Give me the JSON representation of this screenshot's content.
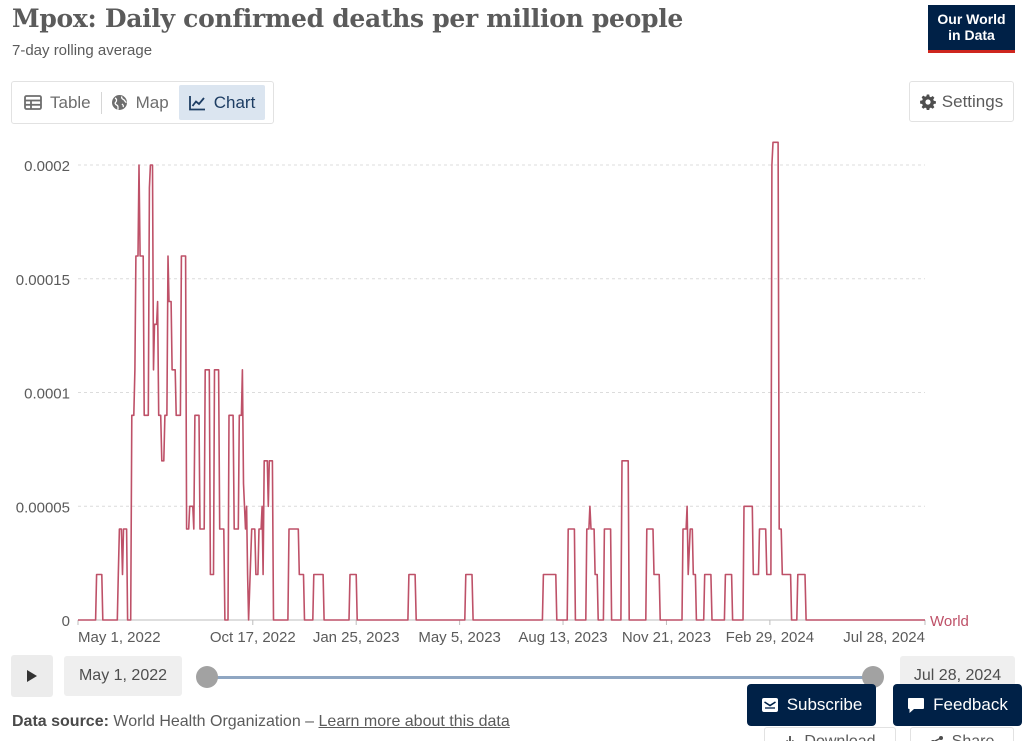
{
  "header": {
    "title": "Mpox: Daily confirmed deaths per million people",
    "subtitle": "7-day rolling average",
    "logo_line1": "Our World",
    "logo_line2": "in Data"
  },
  "tabs": [
    {
      "label": "Table",
      "icon": "table-icon",
      "active": false
    },
    {
      "label": "Map",
      "icon": "globe-icon",
      "active": false
    },
    {
      "label": "Chart",
      "icon": "line-chart-icon",
      "active": true
    }
  ],
  "settings_label": "Settings",
  "timeline": {
    "start_date": "May 1, 2022",
    "end_date": "Jul 28, 2024"
  },
  "footer": {
    "source_prefix": "Data source:",
    "source_name": "World Health Organization – ",
    "learn_more": "Learn more about this data",
    "subscribe_label": "Subscribe",
    "feedback_label": "Feedback",
    "download_label": "Download",
    "share_label": "Share"
  },
  "colors": {
    "series": "#be5168",
    "brand": "#002147",
    "brand_accent": "#ce261e",
    "active_tab": "#dbe5f0"
  },
  "chart_data": {
    "type": "line",
    "title": "Mpox: Daily confirmed deaths per million people",
    "subtitle": "7-day rolling average",
    "x_start": "May 1, 2022",
    "x_end": "Jul 28, 2024",
    "x_tick_labels": [
      "May 1, 2022",
      "Oct 17, 2022",
      "Jan 25, 2023",
      "May 5, 2023",
      "Aug 13, 2023",
      "Nov 21, 2023",
      "Feb 29, 2024",
      "Jul 28, 2024"
    ],
    "y_ticks": [
      0,
      5e-05,
      0.0001,
      0.00015,
      0.0002
    ],
    "y_tick_labels": [
      "0",
      "0.00005",
      "0.0001",
      "0.00015",
      "0.0002"
    ],
    "ylim": [
      0,
      0.00021
    ],
    "grid": "horizontal-dashed",
    "series": [
      {
        "name": "World",
        "color": "#be5168",
        "points": [
          [
            "2022-05-01",
            0
          ],
          [
            "2022-05-18",
            0
          ],
          [
            "2022-05-19",
            2e-05
          ],
          [
            "2022-05-24",
            2e-05
          ],
          [
            "2022-05-25",
            0
          ],
          [
            "2022-06-08",
            0
          ],
          [
            "2022-06-09",
            2e-05
          ],
          [
            "2022-06-10",
            4e-05
          ],
          [
            "2022-06-12",
            4e-05
          ],
          [
            "2022-06-13",
            2e-05
          ],
          [
            "2022-06-14",
            4e-05
          ],
          [
            "2022-06-17",
            4e-05
          ],
          [
            "2022-06-18",
            0
          ],
          [
            "2022-06-21",
            0
          ],
          [
            "2022-06-22",
            9e-05
          ],
          [
            "2022-06-24",
            9e-05
          ],
          [
            "2022-06-25",
            0.00011
          ],
          [
            "2022-06-26",
            0.00016
          ],
          [
            "2022-06-28",
            0.00016
          ],
          [
            "2022-06-29",
            0.0002
          ],
          [
            "2022-06-30",
            0.00016
          ],
          [
            "2022-07-03",
            0.00016
          ],
          [
            "2022-07-04",
            9e-05
          ],
          [
            "2022-07-08",
            9e-05
          ],
          [
            "2022-07-09",
            0.00019
          ],
          [
            "2022-07-10",
            0.0002
          ],
          [
            "2022-07-12",
            0.0002
          ],
          [
            "2022-07-13",
            0.00011
          ],
          [
            "2022-07-14",
            0.00013
          ],
          [
            "2022-07-16",
            0.00013
          ],
          [
            "2022-07-17",
            0.00014
          ],
          [
            "2022-07-18",
            9e-05
          ],
          [
            "2022-07-20",
            9e-05
          ],
          [
            "2022-07-21",
            7e-05
          ],
          [
            "2022-07-23",
            7e-05
          ],
          [
            "2022-07-24",
            9e-05
          ],
          [
            "2022-07-26",
            9e-05
          ],
          [
            "2022-07-27",
            0.00016
          ],
          [
            "2022-07-28",
            0.00014
          ],
          [
            "2022-07-30",
            0.00014
          ],
          [
            "2022-07-31",
            0.00011
          ],
          [
            "2022-08-03",
            0.00011
          ],
          [
            "2022-08-04",
            9e-05
          ],
          [
            "2022-08-08",
            9e-05
          ],
          [
            "2022-08-09",
            0.00016
          ],
          [
            "2022-08-13",
            0.00016
          ],
          [
            "2022-08-14",
            4e-05
          ],
          [
            "2022-08-16",
            4e-05
          ],
          [
            "2022-08-17",
            5e-05
          ],
          [
            "2022-08-20",
            5e-05
          ],
          [
            "2022-08-21",
            4e-05
          ],
          [
            "2022-08-22",
            9e-05
          ],
          [
            "2022-08-26",
            9e-05
          ],
          [
            "2022-08-27",
            4e-05
          ],
          [
            "2022-08-31",
            4e-05
          ],
          [
            "2022-09-01",
            0.00011
          ],
          [
            "2022-09-05",
            0.00011
          ],
          [
            "2022-09-06",
            2e-05
          ],
          [
            "2022-09-09",
            2e-05
          ],
          [
            "2022-09-10",
            0.00011
          ],
          [
            "2022-09-14",
            0.00011
          ],
          [
            "2022-09-15",
            4e-05
          ],
          [
            "2022-09-19",
            4e-05
          ],
          [
            "2022-09-20",
            0
          ],
          [
            "2022-09-23",
            0
          ],
          [
            "2022-09-24",
            9e-05
          ],
          [
            "2022-09-28",
            9e-05
          ],
          [
            "2022-09-29",
            4e-05
          ],
          [
            "2022-10-03",
            4e-05
          ],
          [
            "2022-10-04",
            9e-05
          ],
          [
            "2022-10-06",
            9e-05
          ],
          [
            "2022-10-07",
            0.00011
          ],
          [
            "2022-10-08",
            6e-05
          ],
          [
            "2022-10-10",
            4e-05
          ],
          [
            "2022-10-11",
            5e-05
          ],
          [
            "2022-10-12",
            2e-05
          ],
          [
            "2022-10-13",
            0
          ],
          [
            "2022-10-16",
            4e-05
          ],
          [
            "2022-10-19",
            4e-05
          ],
          [
            "2022-10-20",
            2e-05
          ],
          [
            "2022-10-22",
            2e-05
          ],
          [
            "2022-10-23",
            4e-05
          ],
          [
            "2022-10-25",
            4e-05
          ],
          [
            "2022-10-26",
            5e-05
          ],
          [
            "2022-10-27",
            2e-05
          ],
          [
            "2022-10-28",
            7e-05
          ],
          [
            "2022-10-31",
            7e-05
          ],
          [
            "2022-11-01",
            5e-05
          ],
          [
            "2022-11-02",
            7e-05
          ],
          [
            "2022-11-05",
            7e-05
          ],
          [
            "2022-11-06",
            0
          ],
          [
            "2022-11-20",
            0
          ],
          [
            "2022-11-21",
            4e-05
          ],
          [
            "2022-11-30",
            4e-05
          ],
          [
            "2022-12-01",
            2e-05
          ],
          [
            "2022-12-05",
            2e-05
          ],
          [
            "2022-12-06",
            0
          ],
          [
            "2022-12-14",
            0
          ],
          [
            "2022-12-15",
            2e-05
          ],
          [
            "2022-12-24",
            2e-05
          ],
          [
            "2022-12-25",
            0
          ],
          [
            "2023-01-18",
            0
          ],
          [
            "2023-01-19",
            2e-05
          ],
          [
            "2023-01-25",
            2e-05
          ],
          [
            "2023-01-26",
            0
          ],
          [
            "2023-03-16",
            0
          ],
          [
            "2023-03-17",
            2e-05
          ],
          [
            "2023-03-23",
            2e-05
          ],
          [
            "2023-03-24",
            0
          ],
          [
            "2023-05-10",
            0
          ],
          [
            "2023-05-11",
            2e-05
          ],
          [
            "2023-05-17",
            2e-05
          ],
          [
            "2023-05-18",
            0
          ],
          [
            "2023-07-24",
            0
          ],
          [
            "2023-07-25",
            2e-05
          ],
          [
            "2023-08-06",
            2e-05
          ],
          [
            "2023-08-07",
            0
          ],
          [
            "2023-08-17",
            0
          ],
          [
            "2023-08-18",
            4e-05
          ],
          [
            "2023-08-24",
            4e-05
          ],
          [
            "2023-08-25",
            0
          ],
          [
            "2023-09-04",
            0
          ],
          [
            "2023-09-05",
            4e-05
          ],
          [
            "2023-09-07",
            4e-05
          ],
          [
            "2023-09-08",
            5e-05
          ],
          [
            "2023-09-09",
            4e-05
          ],
          [
            "2023-09-12",
            4e-05
          ],
          [
            "2023-09-13",
            2e-05
          ],
          [
            "2023-09-15",
            2e-05
          ],
          [
            "2023-09-16",
            0
          ],
          [
            "2023-09-21",
            0
          ],
          [
            "2023-09-22",
            4e-05
          ],
          [
            "2023-09-28",
            4e-05
          ],
          [
            "2023-09-29",
            0
          ],
          [
            "2023-10-08",
            0
          ],
          [
            "2023-10-09",
            7e-05
          ],
          [
            "2023-10-15",
            7e-05
          ],
          [
            "2023-10-16",
            0
          ],
          [
            "2023-11-01",
            0
          ],
          [
            "2023-11-02",
            4e-05
          ],
          [
            "2023-11-08",
            4e-05
          ],
          [
            "2023-11-09",
            2e-05
          ],
          [
            "2023-11-14",
            2e-05
          ],
          [
            "2023-11-15",
            0
          ],
          [
            "2023-12-06",
            0
          ],
          [
            "2023-12-07",
            4e-05
          ],
          [
            "2023-12-10",
            4e-05
          ],
          [
            "2023-12-11",
            5e-05
          ],
          [
            "2023-12-12",
            2e-05
          ],
          [
            "2023-12-14",
            4e-05
          ],
          [
            "2023-12-16",
            4e-05
          ],
          [
            "2023-12-17",
            2e-05
          ],
          [
            "2023-12-19",
            2e-05
          ],
          [
            "2023-12-20",
            0
          ],
          [
            "2023-12-27",
            0
          ],
          [
            "2023-12-28",
            2e-05
          ],
          [
            "2024-01-03",
            2e-05
          ],
          [
            "2024-01-04",
            0
          ],
          [
            "2024-01-16",
            0
          ],
          [
            "2024-01-17",
            2e-05
          ],
          [
            "2024-01-23",
            2e-05
          ],
          [
            "2024-01-24",
            0
          ],
          [
            "2024-02-03",
            0
          ],
          [
            "2024-02-04",
            5e-05
          ],
          [
            "2024-02-12",
            5e-05
          ],
          [
            "2024-02-13",
            2e-05
          ],
          [
            "2024-02-18",
            2e-05
          ],
          [
            "2024-02-19",
            4e-05
          ],
          [
            "2024-02-25",
            4e-05
          ],
          [
            "2024-02-26",
            2e-05
          ],
          [
            "2024-03-01",
            2e-05
          ],
          [
            "2024-03-02",
            0.0002
          ],
          [
            "2024-03-03",
            0.00021
          ],
          [
            "2024-03-08",
            0.00021
          ],
          [
            "2024-03-09",
            4e-05
          ],
          [
            "2024-03-11",
            4e-05
          ],
          [
            "2024-03-12",
            2e-05
          ],
          [
            "2024-03-20",
            2e-05
          ],
          [
            "2024-03-21",
            0
          ],
          [
            "2024-03-26",
            0
          ],
          [
            "2024-03-27",
            2e-05
          ],
          [
            "2024-04-03",
            2e-05
          ],
          [
            "2024-04-04",
            0
          ],
          [
            "2024-07-28",
            0
          ]
        ]
      }
    ]
  }
}
